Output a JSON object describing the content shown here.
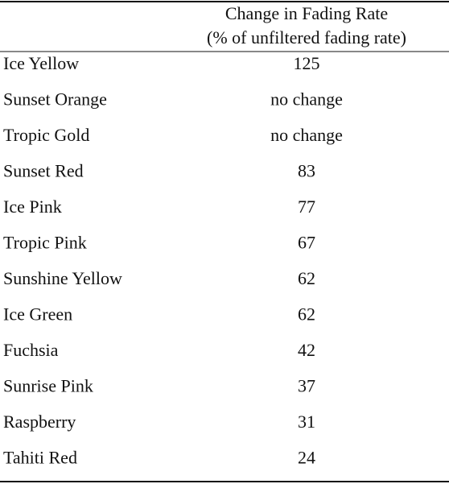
{
  "table": {
    "header": [
      "Change in Fading Rate",
      "(% of unfiltered fading rate)"
    ],
    "rows": [
      [
        "Ice Yellow",
        125
      ],
      [
        "Sunset Orange",
        "no change"
      ],
      [
        "Tropic Gold",
        "no change"
      ],
      [
        "Sunset Red",
        83
      ],
      [
        "Ice Pink",
        77
      ],
      [
        "Tropic Pink",
        67
      ],
      [
        "Sunshine Yellow",
        62
      ],
      [
        "Ice Green",
        62
      ],
      [
        "Fuchsia",
        42
      ],
      [
        "Sunrise Pink",
        37
      ],
      [
        "Raspberry",
        31
      ],
      [
        "Tahiti Red",
        24
      ]
    ]
  }
}
